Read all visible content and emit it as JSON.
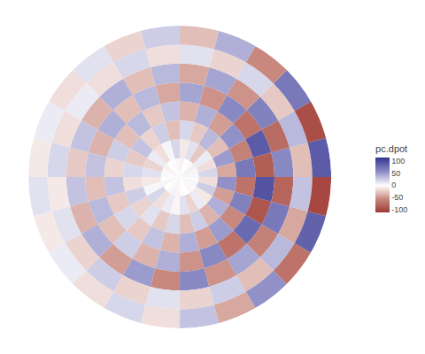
{
  "chart_data": {
    "type": "polar_heatmap",
    "tick_labels": false,
    "grid": false,
    "colorbar": {
      "title": "pc.dpot",
      "range": [
        -110,
        115
      ],
      "ticks": [
        -100,
        -50,
        0,
        50,
        100
      ]
    },
    "cells": [
      [
        5,
        -5,
        8,
        -3,
        0,
        6,
        -4,
        2,
        0,
        -6,
        4,
        3,
        -2,
        5,
        0,
        -3,
        6,
        -5,
        2,
        0,
        -4,
        3,
        5,
        -2
      ],
      [
        20,
        -15,
        10,
        -25,
        15,
        -10,
        20,
        5,
        -15,
        10,
        -20,
        15,
        -10,
        5,
        20,
        -15,
        10,
        -5,
        15,
        -20,
        10,
        -10,
        25,
        -15
      ],
      [
        -40,
        50,
        -30,
        35,
        -25,
        20,
        -30,
        25,
        -20,
        30,
        -25,
        20,
        -15,
        25,
        -20,
        15,
        -25,
        20,
        -30,
        25,
        -35,
        40,
        -45,
        55
      ],
      [
        70,
        -60,
        55,
        -45,
        40,
        -35,
        30,
        -25,
        35,
        -30,
        25,
        -20,
        30,
        -25,
        20,
        -25,
        30,
        -35,
        40,
        -45,
        50,
        -55,
        65,
        -70
      ],
      [
        -85,
        90,
        -70,
        60,
        -50,
        45,
        -40,
        35,
        -30,
        40,
        -35,
        30,
        -30,
        35,
        -30,
        25,
        -35,
        40,
        -50,
        60,
        -70,
        80,
        -90,
        95
      ],
      [
        60,
        -75,
        65,
        -50,
        45,
        -40,
        35,
        -30,
        40,
        -35,
        30,
        -25,
        30,
        -35,
        40,
        -45,
        50,
        -55,
        60,
        -50,
        45,
        -60,
        70,
        -80
      ],
      [
        -30,
        35,
        -25,
        20,
        -20,
        15,
        -15,
        20,
        -15,
        10,
        -15,
        20,
        -10,
        15,
        -20,
        25,
        -20,
        15,
        -20,
        25,
        -30,
        35,
        -40,
        30
      ],
      [
        90,
        -95,
        70,
        -55,
        40,
        -30,
        25,
        -20,
        15,
        -15,
        10,
        -10,
        15,
        -10,
        10,
        -15,
        20,
        -15,
        30,
        -40,
        55,
        -70,
        85,
        -100
      ]
    ]
  }
}
